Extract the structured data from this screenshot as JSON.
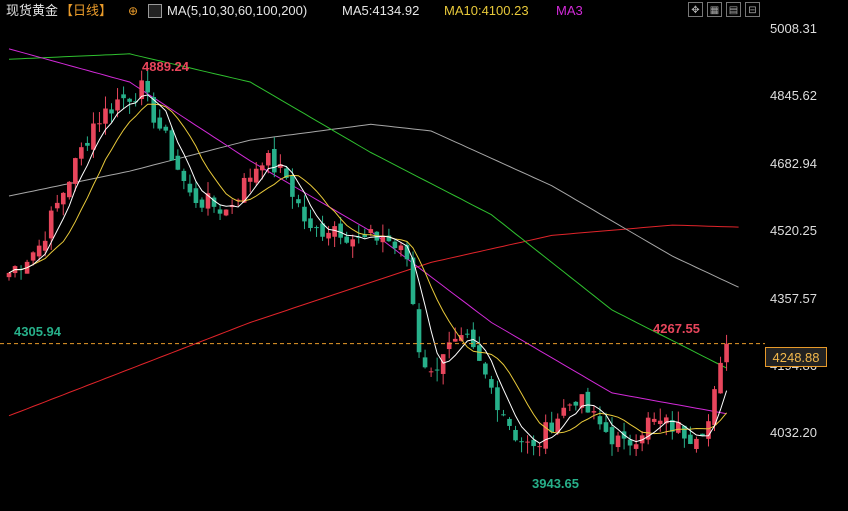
{
  "header": {
    "title": "现货黄金",
    "period": "【日线】",
    "ma_params": "MA(5,10,30,60,100,200)",
    "ma5": "MA5:4134.92",
    "ma10": "MA10:4100.23",
    "ma30": "MA3",
    "toolbar_icons": [
      "fullscreen-icon",
      "grid-icon",
      "layout-icon",
      "settings-icon",
      "zoom-out-icon"
    ]
  },
  "colors": {
    "up": "#e8465c",
    "down": "#27b08a",
    "ma5": "#ffffff",
    "ma10": "#e8c93a",
    "ma30": "#d22ad8",
    "ma60": "#2fc02f",
    "ma100": "#a7a7a7",
    "ma200": "#e0242a",
    "ref_line": "#e89a2a"
  },
  "current_price": "4248.88",
  "annotations": {
    "high_label": "4889.24",
    "low_label": "3943.65",
    "left_low_label": "4305.94",
    "right_high_label": "4267.55"
  },
  "chart_data": {
    "type": "candlestick",
    "y_ticks": [
      "5008.31",
      "4845.62",
      "4682.94",
      "4520.25",
      "4357.57",
      "4194.86",
      "4032.20"
    ],
    "ylim": [
      3920,
      5020
    ],
    "n_candles": 120,
    "current_price": 4248.88,
    "anchors": [
      {
        "i": 0,
        "price": 4420
      },
      {
        "i": 5,
        "price": 4485
      },
      {
        "i": 10,
        "price": 4650
      },
      {
        "i": 14,
        "price": 4780
      },
      {
        "i": 18,
        "price": 4835
      },
      {
        "i": 22,
        "price": 4862
      },
      {
        "i": 26,
        "price": 4740
      },
      {
        "i": 30,
        "price": 4605
      },
      {
        "i": 36,
        "price": 4570
      },
      {
        "i": 42,
        "price": 4700
      },
      {
        "i": 46,
        "price": 4650
      },
      {
        "i": 50,
        "price": 4515
      },
      {
        "i": 54,
        "price": 4535
      },
      {
        "i": 58,
        "price": 4495
      },
      {
        "i": 62,
        "price": 4510
      },
      {
        "i": 66,
        "price": 4455
      },
      {
        "i": 68,
        "price": 4240
      },
      {
        "i": 70,
        "price": 4170
      },
      {
        "i": 72,
        "price": 4235
      },
      {
        "i": 76,
        "price": 4250
      },
      {
        "i": 80,
        "price": 4140
      },
      {
        "i": 84,
        "price": 4030
      },
      {
        "i": 87,
        "price": 3990
      },
      {
        "i": 90,
        "price": 4060
      },
      {
        "i": 94,
        "price": 4120
      },
      {
        "i": 98,
        "price": 4050
      },
      {
        "i": 102,
        "price": 4000
      },
      {
        "i": 106,
        "price": 4060
      },
      {
        "i": 110,
        "price": 4050
      },
      {
        "i": 113,
        "price": 4030
      },
      {
        "i": 116,
        "price": 4060
      },
      {
        "i": 119,
        "price": 4248
      }
    ],
    "ma_anchors": {
      "ma30": [
        [
          0,
          4960
        ],
        [
          20,
          4880
        ],
        [
          40,
          4690
        ],
        [
          60,
          4520
        ],
        [
          80,
          4300
        ],
        [
          100,
          4130
        ],
        [
          119,
          4080
        ]
      ],
      "ma60": [
        [
          0,
          4935
        ],
        [
          20,
          4948
        ],
        [
          40,
          4880
        ],
        [
          60,
          4710
        ],
        [
          80,
          4560
        ],
        [
          100,
          4330
        ],
        [
          119,
          4190
        ]
      ],
      "ma100": [
        [
          0,
          4605
        ],
        [
          20,
          4665
        ],
        [
          40,
          4740
        ],
        [
          60,
          4778
        ],
        [
          70,
          4762
        ],
        [
          90,
          4630
        ],
        [
          110,
          4460
        ],
        [
          121,
          4385
        ]
      ],
      "ma200": [
        [
          0,
          4075
        ],
        [
          40,
          4300
        ],
        [
          70,
          4445
        ],
        [
          90,
          4510
        ],
        [
          110,
          4535
        ],
        [
          121,
          4530
        ]
      ]
    }
  }
}
